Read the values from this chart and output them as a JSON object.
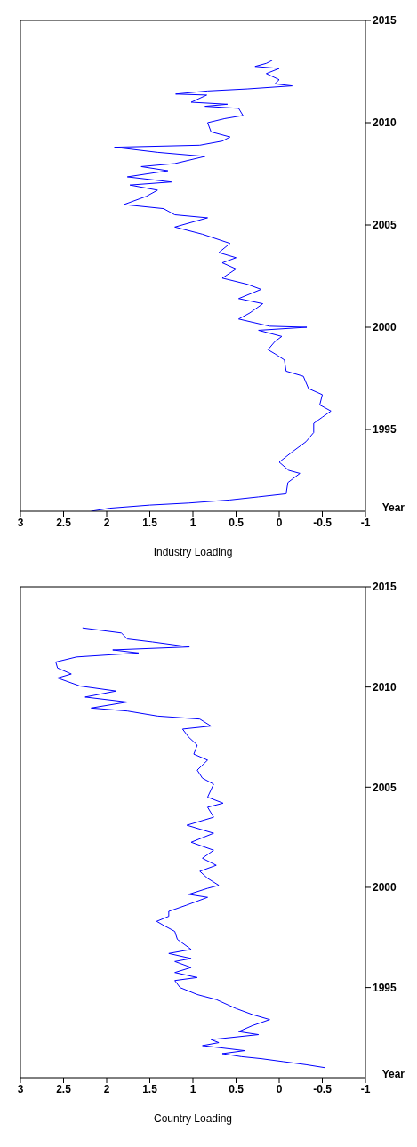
{
  "chart_data": [
    {
      "type": "line",
      "xlabel": "Industry Loading",
      "ylabel": "Year",
      "xlim": [
        3,
        -1
      ],
      "xticks": [
        3,
        2.5,
        2,
        1.5,
        1,
        0.5,
        0,
        -0.5,
        -1
      ],
      "ylim": [
        1991,
        2015
      ],
      "yticks": [
        1995,
        2000,
        2005,
        2010,
        2015
      ],
      "series": [
        {
          "color": "#0000ff",
          "x": [
            2.18,
            1.96,
            1.5,
            1.05,
            0.57,
            0.24,
            -0.08,
            -0.1,
            -0.24,
            -0.11,
            0.0,
            -0.15,
            -0.31,
            -0.4,
            -0.4,
            -0.5,
            -0.6,
            -0.47,
            -0.5,
            -0.34,
            -0.28,
            -0.08,
            -0.06,
            0.05,
            0.13,
            0.05,
            -0.03,
            0.24,
            -0.32,
            0.11,
            0.47,
            0.34,
            0.19,
            0.47,
            0.21,
            0.37,
            0.66,
            0.5,
            0.66,
            0.5,
            0.7,
            0.57,
            0.89,
            1.21,
            0.83,
            1.21,
            1.34,
            1.8,
            1.54,
            1.41,
            1.73,
            1.25,
            1.76,
            1.29,
            1.6,
            1.21,
            0.86,
            1.41,
            1.91,
            0.92,
            0.66,
            0.57,
            0.79,
            0.83,
            0.63,
            0.42,
            0.47,
            0.86,
            0.6,
            1.02,
            0.84,
            1.2,
            0.83,
            0.37,
            -0.15,
            0.05,
            0.0,
            0.15,
            0.0,
            0.28,
            0.15,
            0.08
          ],
          "values": [
            1991.0,
            1991.15,
            1991.3,
            1991.4,
            1991.55,
            1991.7,
            1991.85,
            1992.4,
            1992.85,
            1993.0,
            1993.4,
            1993.9,
            1994.4,
            1994.85,
            1995.3,
            1995.6,
            1995.9,
            1996.2,
            1996.7,
            1997.0,
            1997.6,
            1997.85,
            1998.4,
            1998.7,
            1998.9,
            1999.3,
            1999.55,
            1999.85,
            2000.0,
            2000.05,
            2000.4,
            2000.7,
            2001.15,
            2001.4,
            2001.85,
            2002.1,
            2002.4,
            2002.85,
            2003.15,
            2003.4,
            2003.65,
            2004.1,
            2004.55,
            2004.9,
            2005.35,
            2005.5,
            2005.8,
            2006.0,
            2006.4,
            2006.7,
            2006.95,
            2007.1,
            2007.35,
            2007.65,
            2007.85,
            2008.0,
            2008.35,
            2008.55,
            2008.8,
            2008.9,
            2009.1,
            2009.3,
            2009.55,
            2010.0,
            2010.2,
            2010.35,
            2010.7,
            2010.8,
            2010.9,
            2011.0,
            2011.35,
            2011.4,
            2011.55,
            2011.65,
            2011.8,
            2011.9,
            2012.1,
            2012.4,
            2012.65,
            2012.75,
            2012.9,
            2013.05
          ]
        }
      ]
    },
    {
      "type": "line",
      "xlabel": "Country Loading",
      "ylabel": "Year",
      "xlim": [
        3,
        -1
      ],
      "xticks": [
        3,
        2.5,
        2,
        1.5,
        1,
        0.5,
        0,
        -0.5,
        -1
      ],
      "ylim": [
        1990.5,
        2015
      ],
      "yticks": [
        1995,
        2000,
        2005,
        2010,
        2015
      ],
      "series": [
        {
          "color": "#0000ff",
          "x": [
            -0.53,
            -0.31,
            -0.05,
            0.21,
            0.44,
            0.66,
            0.4,
            0.89,
            0.7,
            0.79,
            0.24,
            0.47,
            0.31,
            0.11,
            0.31,
            0.5,
            0.73,
            0.95,
            1.15,
            1.21,
            0.95,
            1.21,
            1.02,
            1.21,
            1.02,
            1.28,
            1.02,
            1.18,
            1.21,
            1.34,
            1.42,
            1.28,
            1.28,
            1.08,
            0.83,
            1.05,
            0.83,
            0.7,
            0.83,
            0.92,
            0.73,
            0.89,
            0.76,
            1.02,
            0.76,
            1.07,
            0.76,
            0.83,
            0.65,
            0.83,
            0.76,
            0.89,
            0.95,
            0.83,
            0.99,
            0.95,
            1.05,
            1.12,
            0.79,
            0.92,
            1.41,
            1.76,
            2.18,
            1.76,
            2.25,
            1.89,
            2.31,
            2.57,
            2.41,
            2.57,
            2.59,
            2.35,
            1.63,
            1.93,
            1.04,
            1.47,
            1.76,
            1.83,
            2.28
          ],
          "values": [
            1991.0,
            1991.15,
            1991.3,
            1991.45,
            1991.55,
            1991.7,
            1991.85,
            1992.1,
            1992.25,
            1992.4,
            1992.65,
            1992.8,
            1993.1,
            1993.4,
            1993.65,
            1993.95,
            1994.4,
            1994.65,
            1995.0,
            1995.35,
            1995.5,
            1995.75,
            1996.0,
            1996.3,
            1996.45,
            1996.7,
            1996.9,
            1997.4,
            1997.8,
            1998.1,
            1998.3,
            1998.55,
            1998.8,
            1999.1,
            1999.5,
            1999.65,
            1999.95,
            2000.1,
            2000.45,
            2000.8,
            2001.1,
            2001.45,
            2001.85,
            2002.25,
            2002.7,
            2003.1,
            2003.5,
            2004.0,
            2004.2,
            2004.5,
            2005.15,
            2005.45,
            2005.85,
            2006.35,
            2006.65,
            2007.1,
            2007.5,
            2007.9,
            2008.05,
            2008.4,
            2008.55,
            2008.8,
            2008.95,
            2009.25,
            2009.5,
            2009.8,
            2010.05,
            2010.45,
            2010.65,
            2010.95,
            2011.25,
            2011.5,
            2011.7,
            2011.85,
            2012.0,
            2012.25,
            2012.4,
            2012.7,
            2012.95
          ]
        }
      ]
    }
  ]
}
